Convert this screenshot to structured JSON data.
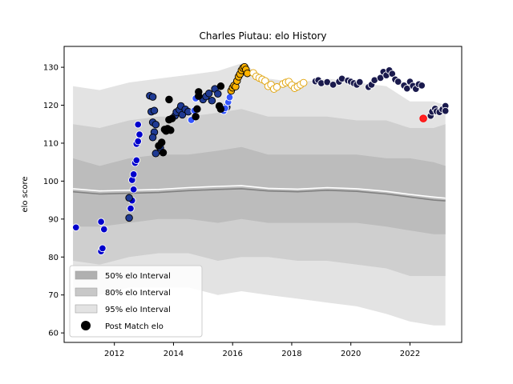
{
  "chart_data": {
    "type": "scatter",
    "title": "Charles Piutau: elo History",
    "xlabel": "",
    "ylabel": "elo score",
    "xlim": [
      2010.3,
      2023.75
    ],
    "ylim": [
      57.5,
      135.5
    ],
    "xticks": [
      2012,
      2014,
      2016,
      2018,
      2020,
      2022
    ],
    "yticks": [
      60,
      70,
      80,
      90,
      100,
      110,
      120,
      130
    ],
    "grid": false,
    "legend": {
      "placement": "lower-left",
      "entries": [
        {
          "label": "50% elo Interval",
          "color": "#b0b0b0"
        },
        {
          "label": "80% elo Interval",
          "color": "#c8c8c8"
        },
        {
          "label": "95% elo Interval",
          "color": "#e3e3e3"
        },
        {
          "label": "Post Match elo",
          "color": "#000000"
        }
      ]
    },
    "bands": {
      "x": [
        2010.6,
        2011.5,
        2012.5,
        2013.5,
        2014.5,
        2015.5,
        2016.3,
        2017.2,
        2018.2,
        2019.2,
        2020.2,
        2021.2,
        2022.0,
        2022.8,
        2023.2
      ],
      "upper95": [
        125,
        124,
        126,
        127,
        128,
        129,
        131,
        127,
        126,
        127,
        126,
        125,
        121,
        121,
        120
      ],
      "upper80": [
        115,
        114,
        116,
        117,
        117,
        118,
        119,
        117,
        117,
        117,
        116,
        116,
        114,
        114,
        115
      ],
      "upper50": [
        106,
        104,
        106,
        107,
        107,
        108,
        109,
        107,
        107,
        107,
        107,
        106,
        106,
        105,
        104
      ],
      "lower50": [
        88,
        88,
        89,
        90,
        90,
        89,
        90,
        89,
        89,
        89,
        89,
        88,
        87,
        86,
        86
      ],
      "lower80": [
        79,
        78,
        80,
        81,
        81,
        79,
        80,
        80,
        79,
        79,
        78,
        77,
        75,
        75,
        75
      ],
      "lower95": [
        71,
        70,
        72,
        72,
        72,
        70,
        71,
        70,
        69,
        68,
        67,
        65,
        63,
        62,
        62
      ]
    },
    "median_line": {
      "color": "#808080",
      "x": [
        2010.6,
        2011.5,
        2012.5,
        2013.5,
        2014.5,
        2015.5,
        2016.3,
        2017.2,
        2018.2,
        2019.2,
        2020.2,
        2021.2,
        2022.0,
        2022.8,
        2023.2
      ],
      "y": [
        97.2,
        96.6,
        96.8,
        97.0,
        97.5,
        97.8,
        98.0,
        97.4,
        97.2,
        97.6,
        97.3,
        96.6,
        95.8,
        95.0,
        94.8
      ]
    },
    "mean_line": {
      "color": "#ffffff",
      "x": [
        2010.6,
        2011.5,
        2012.5,
        2013.5,
        2014.5,
        2015.5,
        2016.3,
        2017.2,
        2018.2,
        2019.2,
        2020.2,
        2021.2,
        2022.0,
        2022.8,
        2023.2
      ],
      "y": [
        98.0,
        97.4,
        97.6,
        97.8,
        98.3,
        98.6,
        98.8,
        98.1,
        97.9,
        98.3,
        98.0,
        97.3,
        96.5,
        95.8,
        95.5
      ]
    },
    "series": [
      {
        "color": "#0000cc",
        "edge": "#ffffff",
        "points": [
          [
            2010.7,
            87.8
          ],
          [
            2011.55,
            81.5
          ],
          [
            2011.6,
            82.3
          ],
          [
            2011.55,
            89.3
          ],
          [
            2011.65,
            87.3
          ],
          [
            2012.55,
            92.8
          ],
          [
            2012.6,
            94.9
          ],
          [
            2012.65,
            97.8
          ],
          [
            2012.6,
            100.3
          ],
          [
            2012.65,
            101.8
          ],
          [
            2012.7,
            104.8
          ],
          [
            2012.75,
            105.5
          ],
          [
            2012.75,
            109.8
          ],
          [
            2012.8,
            110.5
          ],
          [
            2012.85,
            112.3
          ],
          [
            2012.8,
            114.9
          ]
        ]
      },
      {
        "color": "#1f3a93",
        "edge": "#000000",
        "points": [
          [
            2012.5,
            90.3
          ],
          [
            2012.5,
            95.6
          ],
          [
            2013.2,
            122.5
          ],
          [
            2013.3,
            122.2
          ],
          [
            2013.25,
            118.3
          ],
          [
            2013.35,
            118.6
          ],
          [
            2013.3,
            115.5
          ],
          [
            2013.4,
            114.9
          ],
          [
            2013.35,
            112.9
          ],
          [
            2013.3,
            111.5
          ],
          [
            2013.4,
            107.3
          ],
          [
            2013.55,
            108.8
          ],
          [
            2014.05,
            117.2
          ],
          [
            2014.1,
            118.2
          ],
          [
            2014.2,
            118.8
          ],
          [
            2014.25,
            119.8
          ],
          [
            2014.3,
            117.5
          ],
          [
            2014.4,
            118.9
          ],
          [
            2014.5,
            118.3
          ],
          [
            2015.0,
            121.5
          ],
          [
            2015.1,
            122.3
          ],
          [
            2015.2,
            123.1
          ],
          [
            2015.3,
            121.2
          ],
          [
            2015.4,
            124.3
          ],
          [
            2015.5,
            123.0
          ],
          [
            2015.8,
            119.5
          ]
        ]
      },
      {
        "color": "#3355ff",
        "edge": "#ffffff",
        "points": [
          [
            2014.6,
            116.1
          ],
          [
            2014.7,
            118.6
          ],
          [
            2014.75,
            121.8
          ],
          [
            2015.7,
            118.5
          ],
          [
            2015.75,
            119.2
          ],
          [
            2015.85,
            120.8
          ],
          [
            2015.9,
            122.1
          ]
        ]
      },
      {
        "color": "#000000",
        "edge": "#000000",
        "points": [
          [
            2013.5,
            109.3
          ],
          [
            2013.6,
            110.2
          ],
          [
            2013.65,
            107.5
          ],
          [
            2013.7,
            113.6
          ],
          [
            2013.75,
            113.2
          ],
          [
            2013.8,
            113.8
          ],
          [
            2013.85,
            116.2
          ],
          [
            2013.95,
            116.5
          ],
          [
            2013.9,
            113.4
          ],
          [
            2013.85,
            121.5
          ],
          [
            2014.75,
            117.0
          ],
          [
            2014.8,
            119.0
          ],
          [
            2014.85,
            122.4
          ],
          [
            2014.85,
            123.5
          ],
          [
            2015.55,
            119.8
          ],
          [
            2015.6,
            119.0
          ],
          [
            2015.6,
            125.0
          ]
        ]
      },
      {
        "color": "#ffb300",
        "edge": "#000000",
        "points": [
          [
            2015.95,
            123.8
          ],
          [
            2016.0,
            124.6
          ],
          [
            2016.05,
            125.2
          ],
          [
            2016.1,
            124.9
          ],
          [
            2016.15,
            126.4
          ],
          [
            2016.2,
            127.5
          ],
          [
            2016.25,
            128.2
          ],
          [
            2016.3,
            129.2
          ],
          [
            2016.35,
            129.8
          ],
          [
            2016.4,
            130.1
          ],
          [
            2016.45,
            129.4
          ],
          [
            2016.5,
            128.4
          ]
        ]
      },
      {
        "color": "#ffffff",
        "edge": "#e0a000",
        "points": [
          [
            2016.7,
            128.5
          ],
          [
            2016.8,
            127.6
          ],
          [
            2016.9,
            127.2
          ],
          [
            2017.0,
            126.8
          ],
          [
            2017.1,
            126.4
          ],
          [
            2017.2,
            125.0
          ],
          [
            2017.3,
            125.4
          ],
          [
            2017.4,
            124.3
          ],
          [
            2017.5,
            124.8
          ],
          [
            2017.7,
            125.6
          ],
          [
            2017.8,
            126.0
          ],
          [
            2017.9,
            126.2
          ],
          [
            2018.0,
            125.3
          ],
          [
            2018.1,
            124.5
          ],
          [
            2018.2,
            124.9
          ],
          [
            2018.3,
            125.4
          ],
          [
            2018.4,
            125.9
          ]
        ]
      },
      {
        "color": "#1a1a4d",
        "edge": "#ffffff",
        "points": [
          [
            2018.8,
            126.3
          ],
          [
            2018.9,
            126.6
          ],
          [
            2019.0,
            125.8
          ],
          [
            2019.2,
            126.1
          ],
          [
            2019.4,
            125.4
          ],
          [
            2019.6,
            126.2
          ],
          [
            2019.7,
            127.0
          ],
          [
            2019.9,
            126.5
          ],
          [
            2020.0,
            126.2
          ],
          [
            2020.1,
            125.8
          ],
          [
            2020.2,
            125.4
          ],
          [
            2020.3,
            126.1
          ],
          [
            2020.6,
            124.8
          ],
          [
            2020.7,
            125.4
          ],
          [
            2020.8,
            126.6
          ],
          [
            2021.0,
            127.2
          ],
          [
            2021.1,
            128.8
          ],
          [
            2021.2,
            127.9
          ],
          [
            2021.3,
            129.2
          ],
          [
            2021.4,
            128.3
          ],
          [
            2021.5,
            126.8
          ],
          [
            2021.6,
            126.2
          ],
          [
            2021.8,
            125.2
          ],
          [
            2021.9,
            124.4
          ],
          [
            2022.0,
            126.2
          ],
          [
            2022.1,
            125.1
          ],
          [
            2022.2,
            124.3
          ],
          [
            2022.3,
            125.5
          ],
          [
            2022.4,
            125.2
          ],
          [
            2022.7,
            117.2
          ],
          [
            2022.75,
            118.3
          ],
          [
            2022.85,
            119.1
          ],
          [
            2022.9,
            118.4
          ],
          [
            2023.0,
            118.2
          ],
          [
            2023.1,
            118.9
          ],
          [
            2023.2,
            119.8
          ],
          [
            2023.2,
            118.5
          ]
        ]
      },
      {
        "color": "#ff2020",
        "edge": "#ff0000",
        "points": [
          [
            2022.45,
            116.5
          ]
        ]
      }
    ]
  }
}
